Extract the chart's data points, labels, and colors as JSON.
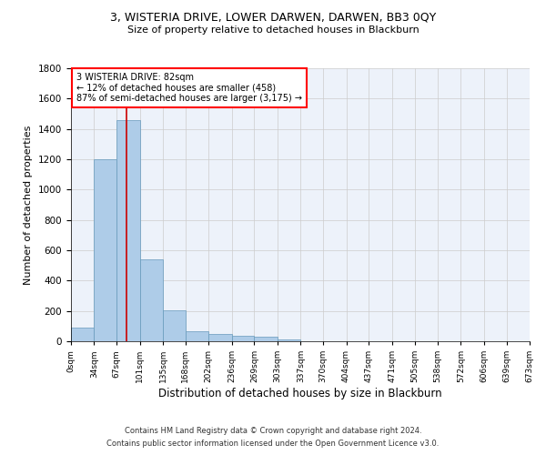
{
  "title1": "3, WISTERIA DRIVE, LOWER DARWEN, DARWEN, BB3 0QY",
  "title2": "Size of property relative to detached houses in Blackburn",
  "xlabel": "Distribution of detached houses by size in Blackburn",
  "ylabel": "Number of detached properties",
  "footer1": "Contains HM Land Registry data © Crown copyright and database right 2024.",
  "footer2": "Contains public sector information licensed under the Open Government Licence v3.0.",
  "annotation_title": "3 WISTERIA DRIVE: 82sqm",
  "annotation_line1": "← 12% of detached houses are smaller (458)",
  "annotation_line2": "87% of semi-detached houses are larger (3,175) →",
  "property_size": 82,
  "bin_edges": [
    0,
    34,
    67,
    101,
    135,
    168,
    202,
    236,
    269,
    303,
    337,
    370,
    404,
    437,
    471,
    505,
    538,
    572,
    606,
    639,
    673
  ],
  "bar_heights": [
    90,
    1200,
    1460,
    540,
    205,
    65,
    48,
    38,
    28,
    15,
    0,
    0,
    0,
    0,
    0,
    0,
    0,
    0,
    0,
    0
  ],
  "bar_color": "#aecce8",
  "bar_edge_color": "#6699bb",
  "line_color": "#cc0000",
  "background_color": "#edf2fa",
  "grid_color": "#cccccc",
  "ylim": [
    0,
    1800
  ],
  "yticks": [
    0,
    200,
    400,
    600,
    800,
    1000,
    1200,
    1400,
    1600,
    1800
  ],
  "tick_labels": [
    "0sqm",
    "34sqm",
    "67sqm",
    "101sqm",
    "135sqm",
    "168sqm",
    "202sqm",
    "236sqm",
    "269sqm",
    "303sqm",
    "337sqm",
    "370sqm",
    "404sqm",
    "437sqm",
    "471sqm",
    "505sqm",
    "538sqm",
    "572sqm",
    "606sqm",
    "639sqm",
    "673sqm"
  ]
}
